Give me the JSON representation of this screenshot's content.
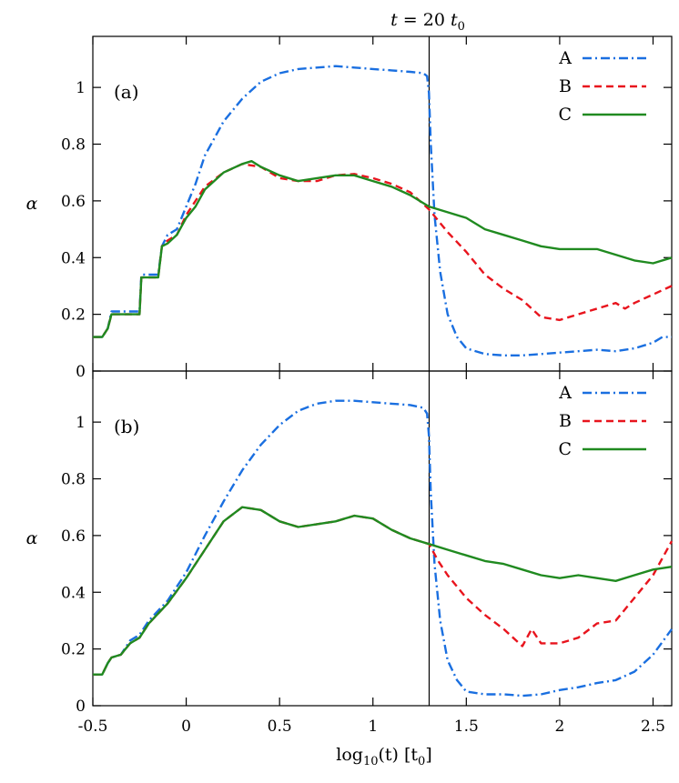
{
  "chart_data": {
    "type": "line",
    "top_annotation": "t = 20 t",
    "top_annotation_sub": "0",
    "marker_x": 1.301,
    "xlabel": "log",
    "xlabel_sub": "10",
    "xlabel_rest": "(t) [t",
    "xlabel_sub2": "0",
    "xlabel_end": "]",
    "xlim": [
      -0.5,
      2.6
    ],
    "xticks": [
      -0.5,
      0,
      0.5,
      1,
      1.5,
      2,
      2.5
    ],
    "xtick_labels": [
      "-0.5",
      "0",
      "0.5",
      "1",
      "1.5",
      "2",
      "2.5"
    ],
    "colors": {
      "A": "#1a6fe0",
      "B": "#e8141d",
      "C": "#208a20"
    },
    "panels": [
      {
        "label": "(a)",
        "ylabel": "α",
        "ylim": [
          0,
          1.18
        ],
        "yticks": [
          0,
          0.2,
          0.4,
          0.6,
          0.8,
          1
        ],
        "ytick_labels": [
          "0",
          "0.2",
          "0.4",
          "0.6",
          "0.8",
          "1"
        ],
        "legend": [
          "A",
          "B",
          "C"
        ],
        "series": [
          {
            "name": "A",
            "style": "dashdot",
            "x": [
              -0.5,
              -0.45,
              -0.42,
              -0.4,
              -0.3,
              -0.25,
              -0.24,
              -0.2,
              -0.15,
              -0.13,
              -0.1,
              -0.05,
              0,
              0.05,
              0.1,
              0.2,
              0.3,
              0.4,
              0.5,
              0.6,
              0.7,
              0.8,
              0.9,
              1.0,
              1.1,
              1.2,
              1.27,
              1.29,
              1.3,
              1.31,
              1.33,
              1.36,
              1.4,
              1.45,
              1.5,
              1.6,
              1.7,
              1.8,
              1.9,
              2.0,
              2.1,
              2.2,
              2.3,
              2.4,
              2.5,
              2.55,
              2.6
            ],
            "y": [
              0.12,
              0.12,
              0.15,
              0.21,
              0.21,
              0.21,
              0.34,
              0.34,
              0.34,
              0.44,
              0.48,
              0.5,
              0.58,
              0.66,
              0.76,
              0.88,
              0.96,
              1.02,
              1.05,
              1.065,
              1.07,
              1.075,
              1.07,
              1.065,
              1.06,
              1.055,
              1.05,
              1.04,
              0.98,
              0.8,
              0.55,
              0.35,
              0.2,
              0.12,
              0.08,
              0.06,
              0.055,
              0.055,
              0.06,
              0.065,
              0.07,
              0.075,
              0.07,
              0.08,
              0.1,
              0.12,
              0.12
            ]
          },
          {
            "name": "B",
            "style": "dashed",
            "x": [
              -0.5,
              -0.45,
              -0.42,
              -0.4,
              -0.3,
              -0.25,
              -0.24,
              -0.2,
              -0.15,
              -0.13,
              -0.1,
              -0.05,
              0,
              0.05,
              0.1,
              0.2,
              0.3,
              0.4,
              0.5,
              0.6,
              0.7,
              0.8,
              0.9,
              1.0,
              1.1,
              1.2,
              1.3,
              1.35,
              1.4,
              1.5,
              1.6,
              1.7,
              1.8,
              1.9,
              2.0,
              2.05,
              2.1,
              2.2,
              2.3,
              2.35,
              2.4,
              2.5,
              2.6
            ],
            "y": [
              0.12,
              0.12,
              0.15,
              0.2,
              0.2,
              0.2,
              0.33,
              0.33,
              0.33,
              0.44,
              0.46,
              0.48,
              0.55,
              0.6,
              0.65,
              0.7,
              0.73,
              0.72,
              0.68,
              0.67,
              0.67,
              0.69,
              0.695,
              0.68,
              0.66,
              0.63,
              0.57,
              0.53,
              0.49,
              0.42,
              0.34,
              0.29,
              0.25,
              0.19,
              0.18,
              0.19,
              0.2,
              0.22,
              0.24,
              0.22,
              0.24,
              0.27,
              0.3
            ]
          },
          {
            "name": "C",
            "style": "solid",
            "x": [
              -0.5,
              -0.45,
              -0.42,
              -0.4,
              -0.3,
              -0.25,
              -0.24,
              -0.2,
              -0.15,
              -0.13,
              -0.1,
              -0.05,
              0,
              0.05,
              0.1,
              0.2,
              0.3,
              0.35,
              0.4,
              0.5,
              0.6,
              0.7,
              0.8,
              0.9,
              1.0,
              1.1,
              1.2,
              1.3,
              1.4,
              1.5,
              1.6,
              1.7,
              1.8,
              1.9,
              2.0,
              2.1,
              2.2,
              2.3,
              2.4,
              2.5,
              2.6
            ],
            "y": [
              0.12,
              0.12,
              0.15,
              0.2,
              0.2,
              0.2,
              0.33,
              0.33,
              0.33,
              0.44,
              0.45,
              0.48,
              0.54,
              0.58,
              0.64,
              0.7,
              0.73,
              0.74,
              0.72,
              0.69,
              0.67,
              0.68,
              0.69,
              0.69,
              0.67,
              0.65,
              0.62,
              0.58,
              0.56,
              0.54,
              0.5,
              0.48,
              0.46,
              0.44,
              0.43,
              0.43,
              0.43,
              0.41,
              0.39,
              0.38,
              0.4
            ]
          }
        ]
      },
      {
        "label": "(b)",
        "ylabel": "α",
        "ylim": [
          0,
          1.18
        ],
        "yticks": [
          0,
          0.2,
          0.4,
          0.6,
          0.8,
          1
        ],
        "ytick_labels": [
          "0",
          "0.2",
          "0.4",
          "0.6",
          "0.8",
          "1"
        ],
        "legend": [
          "A",
          "B",
          "C"
        ],
        "series": [
          {
            "name": "A",
            "style": "dashdot",
            "x": [
              -0.5,
              -0.45,
              -0.42,
              -0.4,
              -0.35,
              -0.3,
              -0.25,
              -0.2,
              -0.1,
              0,
              0.1,
              0.2,
              0.3,
              0.4,
              0.5,
              0.6,
              0.7,
              0.8,
              0.9,
              1.0,
              1.1,
              1.2,
              1.27,
              1.29,
              1.3,
              1.31,
              1.33,
              1.36,
              1.4,
              1.45,
              1.5,
              1.6,
              1.7,
              1.8,
              1.9,
              2.0,
              2.1,
              2.2,
              2.3,
              2.4,
              2.5,
              2.6
            ],
            "y": [
              0.11,
              0.11,
              0.15,
              0.17,
              0.18,
              0.23,
              0.25,
              0.3,
              0.37,
              0.47,
              0.6,
              0.72,
              0.83,
              0.92,
              0.99,
              1.04,
              1.065,
              1.075,
              1.075,
              1.07,
              1.065,
              1.06,
              1.05,
              1.03,
              0.95,
              0.75,
              0.5,
              0.3,
              0.16,
              0.09,
              0.05,
              0.04,
              0.04,
              0.035,
              0.04,
              0.055,
              0.065,
              0.08,
              0.09,
              0.12,
              0.18,
              0.27
            ]
          },
          {
            "name": "B",
            "style": "dashed",
            "x": [
              -0.5,
              -0.45,
              -0.42,
              -0.4,
              -0.35,
              -0.3,
              -0.25,
              -0.2,
              -0.1,
              0,
              0.1,
              0.2,
              0.3,
              0.4,
              0.5,
              0.6,
              0.7,
              0.8,
              0.9,
              1.0,
              1.1,
              1.2,
              1.3,
              1.35,
              1.4,
              1.5,
              1.6,
              1.7,
              1.8,
              1.85,
              1.9,
              2.0,
              2.1,
              2.2,
              2.3,
              2.4,
              2.5,
              2.6
            ],
            "y": [
              0.11,
              0.11,
              0.15,
              0.17,
              0.18,
              0.22,
              0.24,
              0.29,
              0.36,
              0.45,
              0.55,
              0.65,
              0.7,
              0.69,
              0.65,
              0.63,
              0.64,
              0.65,
              0.67,
              0.66,
              0.62,
              0.59,
              0.57,
              0.51,
              0.46,
              0.38,
              0.32,
              0.27,
              0.21,
              0.27,
              0.22,
              0.22,
              0.24,
              0.29,
              0.3,
              0.38,
              0.46,
              0.58
            ]
          },
          {
            "name": "C",
            "style": "solid",
            "x": [
              -0.5,
              -0.45,
              -0.42,
              -0.4,
              -0.35,
              -0.3,
              -0.25,
              -0.2,
              -0.1,
              0,
              0.1,
              0.2,
              0.3,
              0.4,
              0.5,
              0.6,
              0.7,
              0.8,
              0.9,
              1.0,
              1.1,
              1.2,
              1.3,
              1.4,
              1.5,
              1.6,
              1.7,
              1.8,
              1.9,
              2.0,
              2.1,
              2.2,
              2.3,
              2.4,
              2.5,
              2.6
            ],
            "y": [
              0.11,
              0.11,
              0.15,
              0.17,
              0.18,
              0.22,
              0.24,
              0.29,
              0.36,
              0.45,
              0.55,
              0.65,
              0.7,
              0.69,
              0.65,
              0.63,
              0.64,
              0.65,
              0.67,
              0.66,
              0.62,
              0.59,
              0.57,
              0.55,
              0.53,
              0.51,
              0.5,
              0.48,
              0.46,
              0.45,
              0.46,
              0.45,
              0.44,
              0.46,
              0.48,
              0.49
            ]
          }
        ]
      }
    ]
  }
}
